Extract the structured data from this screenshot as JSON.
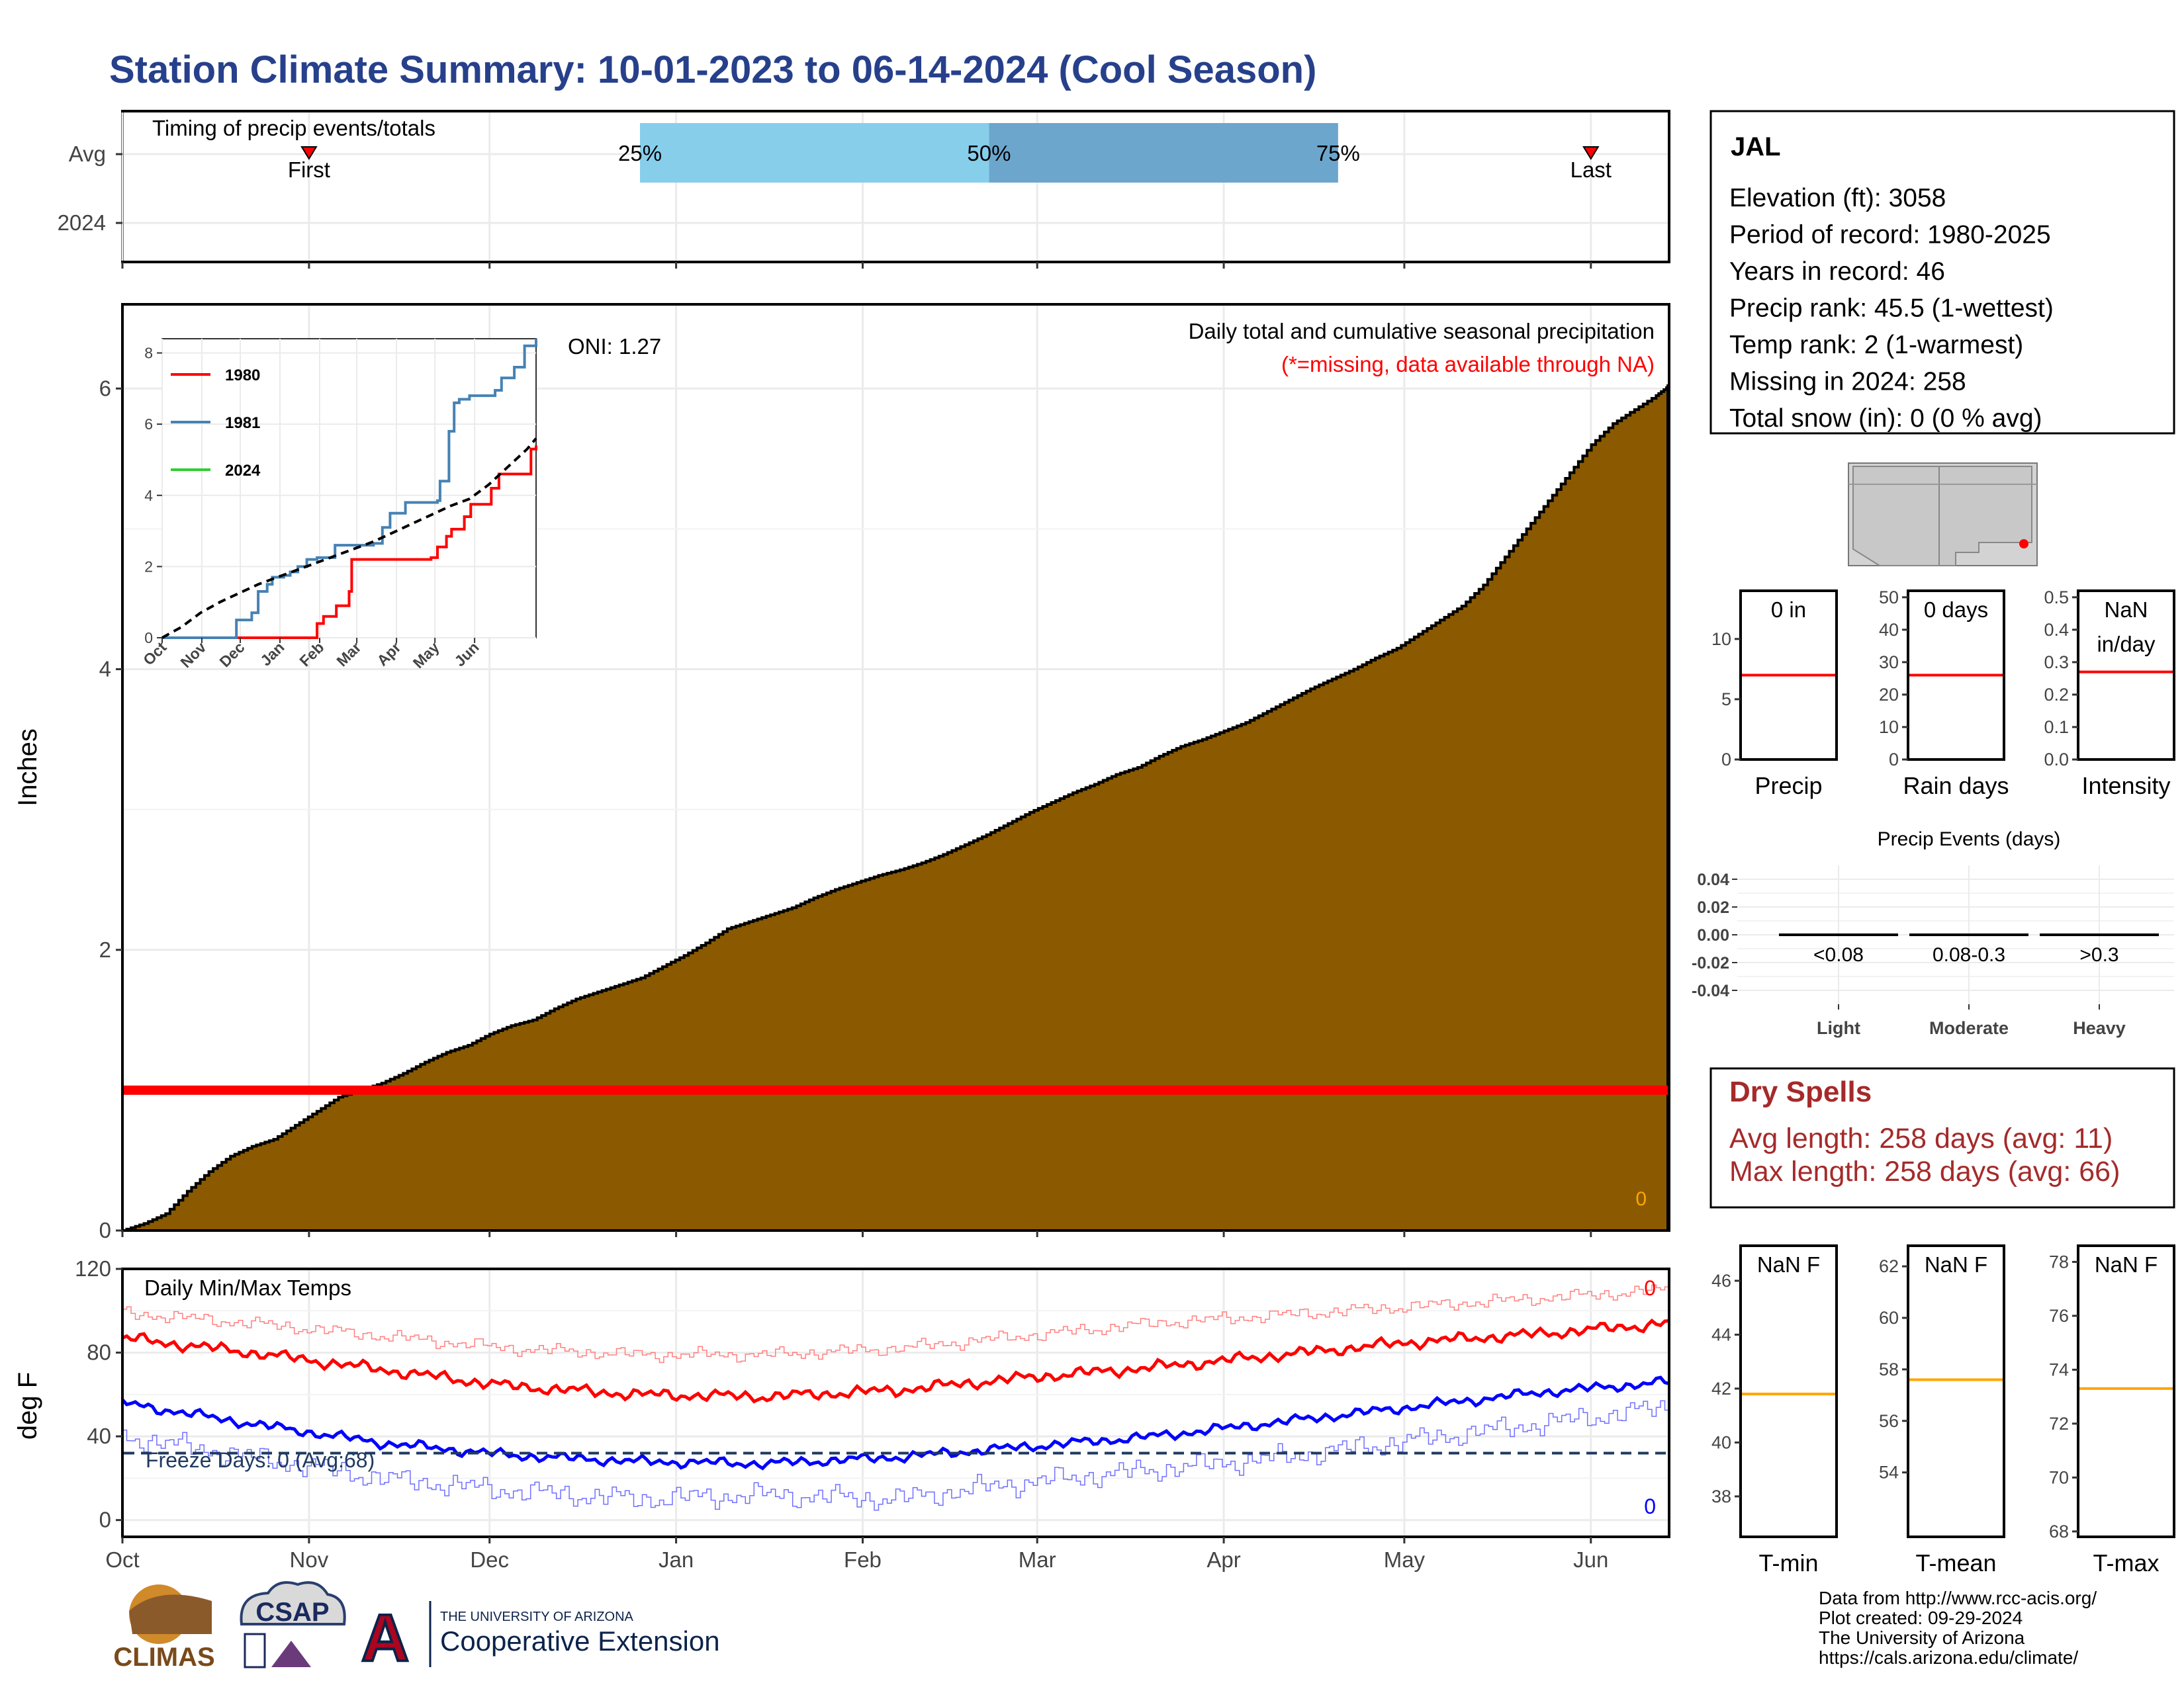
{
  "title": "Station Climate Summary: 10-01-2023 to 06-14-2024 (Cool Season)",
  "colors": {
    "title": "#27408b",
    "precip_fill": "#8b5a00",
    "red": "#ff0000",
    "blue": "#0000ff",
    "orange": "#ffa500",
    "light_blue": "#87ceeb",
    "mid_blue": "#6ca6cd",
    "dry_spell": "#a52a2a",
    "freeze_line": "#1f3a60"
  },
  "month_ticks": [
    "Oct",
    "Nov",
    "Dec",
    "Jan",
    "Feb",
    "Mar",
    "Apr",
    "May",
    "Jun"
  ],
  "chart_data": [
    {
      "id": "timing",
      "type": "bar",
      "title": "Timing of precip events/totals",
      "rows": [
        "Avg",
        "2024"
      ],
      "percentile_bars": [
        {
          "from": "25%",
          "to": "50%",
          "start_day": 86,
          "end_day": 144,
          "color": "#87ceeb"
        },
        {
          "from": "50%",
          "to": "75%",
          "start_day": 144,
          "end_day": 202,
          "color": "#6ca6cd"
        }
      ],
      "percent_labels": [
        "25%",
        "50%",
        "75%"
      ],
      "markers": [
        {
          "label": "First",
          "day": 31
        },
        {
          "label": "Last",
          "day": 244
        }
      ]
    },
    {
      "id": "cumulative_precip",
      "type": "area",
      "title": "Daily total and cumulative seasonal precipitation",
      "subtitle": "(*=missing, data available through NA)",
      "oni": "ONI: 1.27",
      "ylabel": "Inches",
      "ylim": [
        0,
        6.6
      ],
      "yticks": [
        0,
        2,
        4,
        6
      ],
      "xlim_days": [
        0,
        257
      ],
      "corner_value": "0",
      "missing_level": 1.0,
      "points": [
        [
          0,
          0.0
        ],
        [
          5,
          0.05
        ],
        [
          10,
          0.12
        ],
        [
          15,
          0.28
        ],
        [
          20,
          0.42
        ],
        [
          25,
          0.53
        ],
        [
          30,
          0.6
        ],
        [
          35,
          0.65
        ],
        [
          40,
          0.75
        ],
        [
          45,
          0.85
        ],
        [
          50,
          0.95
        ],
        [
          55,
          1.0
        ],
        [
          60,
          1.05
        ],
        [
          65,
          1.12
        ],
        [
          70,
          1.2
        ],
        [
          75,
          1.27
        ],
        [
          80,
          1.32
        ],
        [
          85,
          1.4
        ],
        [
          90,
          1.46
        ],
        [
          95,
          1.5
        ],
        [
          100,
          1.58
        ],
        [
          105,
          1.65
        ],
        [
          110,
          1.7
        ],
        [
          115,
          1.75
        ],
        [
          120,
          1.8
        ],
        [
          125,
          1.88
        ],
        [
          130,
          1.96
        ],
        [
          135,
          2.05
        ],
        [
          140,
          2.15
        ],
        [
          145,
          2.2
        ],
        [
          150,
          2.25
        ],
        [
          155,
          2.3
        ],
        [
          160,
          2.37
        ],
        [
          165,
          2.43
        ],
        [
          170,
          2.48
        ],
        [
          175,
          2.53
        ],
        [
          180,
          2.57
        ],
        [
          185,
          2.62
        ],
        [
          190,
          2.68
        ],
        [
          195,
          2.75
        ],
        [
          200,
          2.82
        ],
        [
          205,
          2.9
        ],
        [
          210,
          2.98
        ],
        [
          215,
          3.05
        ],
        [
          220,
          3.12
        ],
        [
          225,
          3.18
        ],
        [
          230,
          3.25
        ],
        [
          235,
          3.3
        ],
        [
          240,
          3.38
        ],
        [
          245,
          3.45
        ],
        [
          250,
          3.5
        ],
        [
          255,
          3.56
        ],
        [
          260,
          3.62
        ],
        [
          265,
          3.7
        ],
        [
          270,
          3.78
        ],
        [
          275,
          3.86
        ],
        [
          280,
          3.93
        ],
        [
          285,
          4.0
        ],
        [
          290,
          4.08
        ],
        [
          295,
          4.15
        ],
        [
          300,
          4.25
        ],
        [
          305,
          4.35
        ],
        [
          310,
          4.45
        ],
        [
          315,
          4.6
        ],
        [
          320,
          4.8
        ],
        [
          325,
          5.0
        ],
        [
          330,
          5.2
        ],
        [
          335,
          5.4
        ],
        [
          340,
          5.6
        ],
        [
          345,
          5.75
        ],
        [
          350,
          5.85
        ],
        [
          355,
          5.95
        ],
        [
          358,
          6.02
        ]
      ]
    },
    {
      "id": "inset_cumulative",
      "type": "line",
      "ylim": [
        0,
        8.4
      ],
      "yticks": [
        0,
        2,
        4,
        6,
        8
      ],
      "xticks": [
        "Oct",
        "Nov",
        "Dec",
        "Jan",
        "Feb",
        "Mar",
        "Apr",
        "May",
        "Jun"
      ],
      "series": [
        {
          "name": "1980",
          "color": "#ff0000",
          "points": [
            [
              0,
              0
            ],
            [
              120,
              0
            ],
            [
              121,
              0.4
            ],
            [
              126,
              0.6
            ],
            [
              136,
              0.9
            ],
            [
              146,
              1.3
            ],
            [
              148,
              2.2
            ],
            [
              175,
              2.2
            ],
            [
              210,
              2.25
            ],
            [
              215,
              2.55
            ],
            [
              222,
              2.85
            ],
            [
              226,
              3.05
            ],
            [
              231,
              3.05
            ],
            [
              236,
              3.4
            ],
            [
              241,
              3.75
            ],
            [
              246,
              3.75
            ],
            [
              256,
              3.75
            ],
            [
              257,
              4.2
            ],
            [
              263,
              4.6
            ],
            [
              285,
              4.6
            ],
            [
              288,
              5.3
            ],
            [
              292,
              5.4
            ]
          ]
        },
        {
          "name": "1981",
          "color": "#4682b4",
          "points": [
            [
              0,
              0
            ],
            [
              55,
              0
            ],
            [
              58,
              0.5
            ],
            [
              70,
              0.7
            ],
            [
              75,
              1.3
            ],
            [
              82,
              1.5
            ],
            [
              86,
              1.7
            ],
            [
              95,
              1.75
            ],
            [
              100,
              1.85
            ],
            [
              106,
              2.0
            ],
            [
              113,
              2.2
            ],
            [
              121,
              2.25
            ],
            [
              135,
              2.6
            ],
            [
              165,
              2.65
            ],
            [
              172,
              3.1
            ],
            [
              178,
              3.5
            ],
            [
              190,
              3.8
            ],
            [
              215,
              3.85
            ],
            [
              217,
              4.4
            ],
            [
              224,
              5.8
            ],
            [
              228,
              6.6
            ],
            [
              232,
              6.7
            ],
            [
              240,
              6.8
            ],
            [
              260,
              6.95
            ],
            [
              265,
              7.3
            ],
            [
              275,
              7.6
            ],
            [
              283,
              8.2
            ],
            [
              292,
              8.4
            ]
          ]
        },
        {
          "name": "2024",
          "color": "#32cd32",
          "points": []
        },
        {
          "name": "",
          "color": "#000000",
          "dashed": true,
          "points": [
            [
              0,
              0
            ],
            [
              15,
              0.3
            ],
            [
              30,
              0.7
            ],
            [
              45,
              1.0
            ],
            [
              60,
              1.25
            ],
            [
              75,
              1.5
            ],
            [
              90,
              1.7
            ],
            [
              105,
              1.9
            ],
            [
              120,
              2.1
            ],
            [
              135,
              2.3
            ],
            [
              150,
              2.5
            ],
            [
              165,
              2.7
            ],
            [
              180,
              2.95
            ],
            [
              195,
              3.2
            ],
            [
              210,
              3.45
            ],
            [
              225,
              3.7
            ],
            [
              240,
              3.9
            ],
            [
              255,
              4.3
            ],
            [
              270,
              4.8
            ],
            [
              285,
              5.3
            ],
            [
              292,
              5.6
            ]
          ]
        }
      ]
    },
    {
      "id": "temps",
      "type": "line",
      "title": "Daily Min/Max Temps",
      "ylabel": "deg F",
      "ylim": [
        -8,
        120
      ],
      "yticks": [
        0,
        40,
        80,
        120
      ],
      "freeze_line": 32,
      "freeze_text": "Freeze Days: 0 (Avg:68)",
      "max_count": "0",
      "min_count": "0",
      "series": [
        {
          "name": "avg_max",
          "color": "#ff0000",
          "points": [
            [
              0,
              87
            ],
            [
              30,
              80
            ],
            [
              60,
              72
            ],
            [
              90,
              64
            ],
            [
              120,
              60
            ],
            [
              150,
              59
            ],
            [
              180,
              62
            ],
            [
              210,
              68
            ],
            [
              240,
              73
            ],
            [
              270,
              79
            ],
            [
              300,
              85
            ],
            [
              330,
              89
            ],
            [
              360,
              94
            ]
          ]
        },
        {
          "name": "avg_min",
          "color": "#0000ff",
          "points": [
            [
              0,
              56
            ],
            [
              30,
              46
            ],
            [
              60,
              37
            ],
            [
              90,
              31
            ],
            [
              120,
              28
            ],
            [
              150,
              27
            ],
            [
              180,
              30
            ],
            [
              210,
              35
            ],
            [
              240,
              40
            ],
            [
              270,
              47
            ],
            [
              300,
              54
            ],
            [
              330,
              61
            ],
            [
              360,
              66
            ]
          ]
        },
        {
          "name": "record_max",
          "color": "#ff8080",
          "points": [
            [
              0,
              99
            ],
            [
              30,
              94
            ],
            [
              60,
              88
            ],
            [
              90,
              82
            ],
            [
              120,
              79
            ],
            [
              150,
              79
            ],
            [
              180,
              82
            ],
            [
              210,
              88
            ],
            [
              240,
              94
            ],
            [
              270,
              98
            ],
            [
              300,
              102
            ],
            [
              330,
              106
            ],
            [
              360,
              110
            ]
          ]
        },
        {
          "name": "record_min",
          "color": "#7070ff",
          "points": [
            [
              0,
              40
            ],
            [
              30,
              30
            ],
            [
              60,
              20
            ],
            [
              90,
              14
            ],
            [
              120,
              10
            ],
            [
              150,
              12
            ],
            [
              180,
              10
            ],
            [
              210,
              18
            ],
            [
              240,
              24
            ],
            [
              270,
              30
            ],
            [
              300,
              38
            ],
            [
              330,
              46
            ],
            [
              360,
              54
            ]
          ]
        }
      ]
    },
    {
      "id": "precip_box",
      "type": "bar",
      "value_text": "0 in",
      "label": "Precip",
      "ylim": [
        0,
        14
      ],
      "yticks": [
        0,
        5,
        10
      ],
      "avg_line": 7.0
    },
    {
      "id": "raindays_box",
      "type": "bar",
      "value_text": "0 days",
      "label": "Rain days",
      "ylim": [
        0,
        52
      ],
      "yticks": [
        0,
        10,
        20,
        30,
        40,
        50
      ],
      "avg_line": 26
    },
    {
      "id": "intensity_box",
      "type": "bar",
      "value_text": "NaN\nin/day",
      "label": "Intensity",
      "ylim": [
        0,
        0.52
      ],
      "yticks": [
        "0.0",
        "0.1",
        "0.2",
        "0.3",
        "0.4",
        "0.5"
      ],
      "avg_line": 0.27
    },
    {
      "id": "precip_events",
      "type": "bar",
      "title": "Precip Events (days)",
      "categories": [
        "Light",
        "Moderate",
        "Heavy"
      ],
      "bar_labels": [
        "<0.08",
        "0.08-0.3",
        ">0.3"
      ],
      "values": [
        0,
        0,
        0
      ],
      "ylim": [
        -0.05,
        0.05
      ],
      "yticks": [
        "0.04",
        "0.02",
        "0.00",
        "-0.02",
        "-0.04"
      ]
    },
    {
      "id": "tmin_box",
      "type": "bar",
      "value_text": "NaN F",
      "label": "T-min",
      "ylim": [
        36.5,
        47.3
      ],
      "yticks": [
        38,
        40,
        42,
        44,
        46
      ],
      "avg_line": 41.8
    },
    {
      "id": "tmean_box",
      "type": "bar",
      "value_text": "NaN F",
      "label": "T-mean",
      "ylim": [
        51.5,
        62.8
      ],
      "yticks": [
        54,
        56,
        58,
        60,
        62
      ],
      "avg_line": 57.6
    },
    {
      "id": "tmax_box",
      "type": "bar",
      "value_text": "NaN F",
      "label": "T-max",
      "ylim": [
        67.8,
        78.6
      ],
      "yticks": [
        68,
        70,
        72,
        74,
        76,
        78
      ],
      "avg_line": 73.3
    }
  ],
  "station": {
    "name": "JAL",
    "lines": [
      "Elevation (ft): 3058",
      "Period of record: 1980-2025",
      "Years in record: 46",
      "Precip rank: 45.5 (1-wettest)",
      "Temp rank: 2 (1-warmest)",
      "Missing in 2024: 258",
      "Total snow (in): 0 (0 % avg)"
    ]
  },
  "dry_spells": {
    "title": "Dry Spells",
    "avg": "Avg length: 258 days (avg: 11)",
    "max": "Max length: 258 days (avg: 66)"
  },
  "footer": {
    "lines": [
      "Data from http://www.rcc-acis.org/",
      "Plot created: 09-29-2024",
      "The University of Arizona",
      "https://cals.arizona.edu/climate/"
    ],
    "logos": {
      "climas": "CLIMAS",
      "csap": "CSAP",
      "ua_top": "THE UNIVERSITY OF ARIZONA",
      "ua_bottom": "Cooperative Extension",
      "ua_mark": "A"
    }
  }
}
